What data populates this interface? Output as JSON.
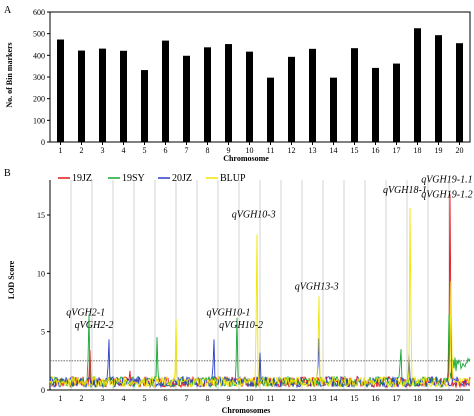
{
  "panelA": {
    "label": "A",
    "chart_data": {
      "type": "bar",
      "categories": [
        "1",
        "2",
        "3",
        "4",
        "5",
        "6",
        "7",
        "8",
        "9",
        "10",
        "11",
        "12",
        "13",
        "14",
        "15",
        "16",
        "17",
        "18",
        "19",
        "20"
      ],
      "values": [
        473,
        422,
        431,
        421,
        332,
        468,
        398,
        437,
        452,
        417,
        297,
        393,
        430,
        297,
        433,
        342,
        362,
        525,
        493,
        456
      ],
      "xlabel": "Chromosome",
      "ylabel": "No. of Bin markers",
      "ylim": [
        0,
        600
      ],
      "yticks": [
        0,
        100,
        200,
        300,
        400,
        500,
        600
      ],
      "bar_color": "#000000"
    }
  },
  "panelB": {
    "label": "B",
    "chart_data": {
      "type": "line",
      "xlabel": "Chromosomes",
      "ylabel": "LOD Score",
      "ylim": [
        0,
        18
      ],
      "yticks": [
        0,
        5,
        10,
        15
      ],
      "chromosomes": [
        "1",
        "2",
        "3",
        "4",
        "5",
        "6",
        "7",
        "8",
        "9",
        "10",
        "11",
        "12",
        "13",
        "14",
        "15",
        "16",
        "17",
        "18",
        "19",
        "20"
      ],
      "threshold": 2.5,
      "series": [
        {
          "name": "19JZ",
          "color": "#e8141c",
          "peaks": [
            {
              "chr": 2.4,
              "lod": 3.4
            },
            {
              "chr": 19.55,
              "lod": 17.2
            },
            {
              "chr": 4.3,
              "lod": 1.6
            }
          ]
        },
        {
          "name": "19SY",
          "color": "#15a833",
          "peaks": [
            {
              "chr": 2.35,
              "lod": 7.0
            },
            {
              "chr": 5.6,
              "lod": 4.6
            },
            {
              "chr": 9.4,
              "lod": 6.4
            },
            {
              "chr": 17.2,
              "lod": 4.2
            },
            {
              "chr": 19.5,
              "lod": 6.2
            }
          ]
        },
        {
          "name": "20JZ",
          "color": "#2b3fc9",
          "peaks": [
            {
              "chr": 3.3,
              "lod": 4.8
            },
            {
              "chr": 8.3,
              "lod": 4.8
            },
            {
              "chr": 10.5,
              "lod": 2.9
            },
            {
              "chr": 13.3,
              "lod": 4.9
            },
            {
              "chr": 17.6,
              "lod": 3.0
            }
          ]
        },
        {
          "name": "BLUP",
          "color": "#f2e600",
          "peaks": [
            {
              "chr": 6.5,
              "lod": 5.8
            },
            {
              "chr": 10.35,
              "lod": 14.8
            },
            {
              "chr": 13.3,
              "lod": 9.2
            },
            {
              "chr": 17.65,
              "lod": 17.4
            },
            {
              "chr": 19.6,
              "lod": 9.8
            }
          ]
        }
      ],
      "annotations": [
        {
          "text": "qVGH2-1",
          "chr": 2.2,
          "lod": 6.4
        },
        {
          "text": "qVGH2-2",
          "chr": 2.6,
          "lod": 5.3
        },
        {
          "text": "qVGH10-1",
          "chr": 9.0,
          "lod": 6.4
        },
        {
          "text": "qVGH10-2",
          "chr": 9.6,
          "lod": 5.3
        },
        {
          "text": "qVGH10-3",
          "chr": 10.2,
          "lod": 14.8
        },
        {
          "text": "qVGH13-3",
          "chr": 13.2,
          "lod": 8.6
        },
        {
          "text": "qVGH18-1",
          "chr": 17.4,
          "lod": 16.9
        },
        {
          "text": "qVGH19-1.1",
          "chr": 19.4,
          "lod": 17.8
        },
        {
          "text": "qVGH19-1.2",
          "chr": 19.4,
          "lod": 16.5
        }
      ]
    }
  }
}
